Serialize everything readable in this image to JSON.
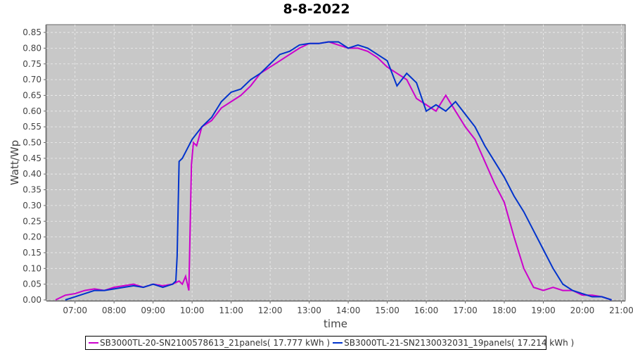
{
  "chart_data": {
    "type": "line",
    "title": "8-8-2022",
    "xlabel": "time",
    "ylabel": "Watt/Wp",
    "xlim": [
      "06:16",
      "21:06"
    ],
    "ylim": [
      0,
      0.87
    ],
    "x_ticks": [
      "07:00",
      "08:00",
      "09:00",
      "10:00",
      "11:00",
      "12:00",
      "13:00",
      "14:00",
      "15:00",
      "16:00",
      "17:00",
      "18:00",
      "19:00",
      "20:00",
      "21:00"
    ],
    "y_ticks": [
      "0.00",
      "0.05",
      "0.10",
      "0.15",
      "0.20",
      "0.25",
      "0.30",
      "0.35",
      "0.40",
      "0.45",
      "0.50",
      "0.55",
      "0.60",
      "0.65",
      "0.70",
      "0.75",
      "0.80",
      "0.85"
    ],
    "grid": true,
    "background": "#c8c8c8",
    "legend_position": "bottom",
    "series": [
      {
        "name": "SB3000TL-20-SN2100578613_21panels( 17.777 kWh )",
        "color": "#cc00cc",
        "points": [
          [
            "06:30",
            0
          ],
          [
            "06:45",
            0.015
          ],
          [
            "07:00",
            0.02
          ],
          [
            "07:15",
            0.03
          ],
          [
            "07:30",
            0.035
          ],
          [
            "07:45",
            0.03
          ],
          [
            "08:00",
            0.04
          ],
          [
            "08:15",
            0.045
          ],
          [
            "08:30",
            0.05
          ],
          [
            "08:45",
            0.04
          ],
          [
            "09:00",
            0.05
          ],
          [
            "09:15",
            0.045
          ],
          [
            "09:30",
            0.05
          ],
          [
            "09:40",
            0.06
          ],
          [
            "09:45",
            0.05
          ],
          [
            "09:50",
            0.075
          ],
          [
            "09:55",
            0.03
          ],
          [
            "09:59",
            0.43
          ],
          [
            "10:02",
            0.5
          ],
          [
            "10:07",
            0.49
          ],
          [
            "10:15",
            0.55
          ],
          [
            "10:30",
            0.57
          ],
          [
            "10:45",
            0.61
          ],
          [
            "11:00",
            0.63
          ],
          [
            "11:15",
            0.65
          ],
          [
            "11:30",
            0.68
          ],
          [
            "11:45",
            0.72
          ],
          [
            "12:00",
            0.74
          ],
          [
            "12:15",
            0.76
          ],
          [
            "12:30",
            0.78
          ],
          [
            "12:45",
            0.8
          ],
          [
            "13:00",
            0.815
          ],
          [
            "13:15",
            0.815
          ],
          [
            "13:30",
            0.82
          ],
          [
            "13:45",
            0.81
          ],
          [
            "14:00",
            0.8
          ],
          [
            "14:15",
            0.8
          ],
          [
            "14:30",
            0.79
          ],
          [
            "14:45",
            0.77
          ],
          [
            "15:00",
            0.74
          ],
          [
            "15:15",
            0.72
          ],
          [
            "15:30",
            0.7
          ],
          [
            "15:45",
            0.64
          ],
          [
            "16:00",
            0.62
          ],
          [
            "16:15",
            0.6
          ],
          [
            "16:30",
            0.65
          ],
          [
            "16:45",
            0.6
          ],
          [
            "17:00",
            0.55
          ],
          [
            "17:15",
            0.51
          ],
          [
            "17:30",
            0.44
          ],
          [
            "17:45",
            0.37
          ],
          [
            "18:00",
            0.31
          ],
          [
            "18:15",
            0.2
          ],
          [
            "18:30",
            0.1
          ],
          [
            "18:45",
            0.04
          ],
          [
            "19:00",
            0.03
          ],
          [
            "19:15",
            0.04
          ],
          [
            "19:30",
            0.03
          ],
          [
            "19:45",
            0.03
          ],
          [
            "20:00",
            0.015
          ],
          [
            "20:15",
            0.015
          ],
          [
            "20:30",
            0.01
          ],
          [
            "20:45",
            0
          ]
        ]
      },
      {
        "name": "SB3000TL-21-SN2130032031_19panels( 17.214 kWh )",
        "color": "#0033cc",
        "points": [
          [
            "06:45",
            0
          ],
          [
            "07:00",
            0.01
          ],
          [
            "07:15",
            0.02
          ],
          [
            "07:30",
            0.03
          ],
          [
            "07:45",
            0.03
          ],
          [
            "08:00",
            0.035
          ],
          [
            "08:15",
            0.04
          ],
          [
            "08:30",
            0.045
          ],
          [
            "08:45",
            0.04
          ],
          [
            "09:00",
            0.05
          ],
          [
            "09:15",
            0.04
          ],
          [
            "09:30",
            0.05
          ],
          [
            "09:35",
            0.06
          ],
          [
            "09:37",
            0.14
          ],
          [
            "09:40",
            0.44
          ],
          [
            "09:45",
            0.45
          ],
          [
            "09:55",
            0.49
          ],
          [
            "10:00",
            0.51
          ],
          [
            "10:15",
            0.55
          ],
          [
            "10:30",
            0.58
          ],
          [
            "10:45",
            0.63
          ],
          [
            "11:00",
            0.66
          ],
          [
            "11:15",
            0.67
          ],
          [
            "11:30",
            0.7
          ],
          [
            "11:45",
            0.72
          ],
          [
            "12:00",
            0.75
          ],
          [
            "12:15",
            0.78
          ],
          [
            "12:30",
            0.79
          ],
          [
            "12:45",
            0.81
          ],
          [
            "13:00",
            0.815
          ],
          [
            "13:15",
            0.815
          ],
          [
            "13:30",
            0.82
          ],
          [
            "13:45",
            0.82
          ],
          [
            "14:00",
            0.8
          ],
          [
            "14:15",
            0.81
          ],
          [
            "14:30",
            0.8
          ],
          [
            "14:45",
            0.78
          ],
          [
            "15:00",
            0.76
          ],
          [
            "15:15",
            0.68
          ],
          [
            "15:30",
            0.72
          ],
          [
            "15:45",
            0.69
          ],
          [
            "16:00",
            0.6
          ],
          [
            "16:15",
            0.62
          ],
          [
            "16:30",
            0.6
          ],
          [
            "16:45",
            0.63
          ],
          [
            "17:00",
            0.59
          ],
          [
            "17:15",
            0.55
          ],
          [
            "17:30",
            0.49
          ],
          [
            "17:45",
            0.44
          ],
          [
            "18:00",
            0.39
          ],
          [
            "18:15",
            0.33
          ],
          [
            "18:30",
            0.28
          ],
          [
            "18:45",
            0.22
          ],
          [
            "19:00",
            0.16
          ],
          [
            "19:15",
            0.1
          ],
          [
            "19:30",
            0.05
          ],
          [
            "19:45",
            0.03
          ],
          [
            "20:00",
            0.02
          ],
          [
            "20:15",
            0.01
          ],
          [
            "20:30",
            0.01
          ],
          [
            "20:45",
            0
          ]
        ]
      }
    ]
  }
}
